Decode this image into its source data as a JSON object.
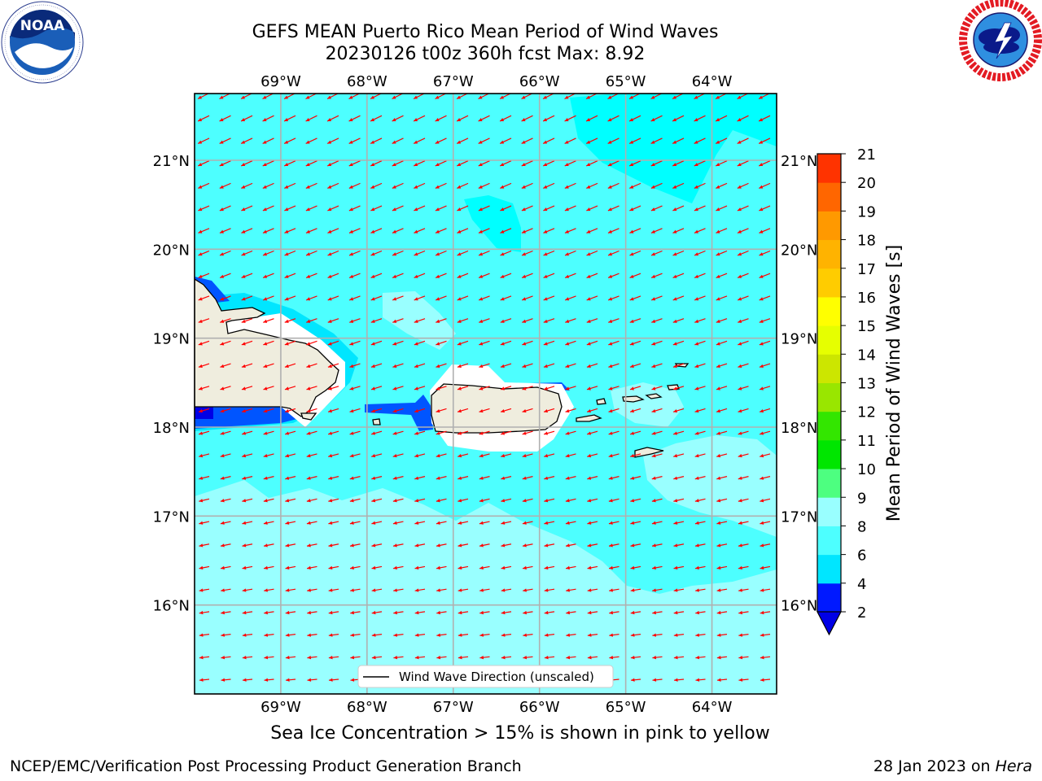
{
  "title": {
    "line1": "GEFS MEAN Puerto Rico Mean Period of Wind Waves",
    "line2": "20230126 t00z 360h fcst   Max: 8.92"
  },
  "logos": {
    "left": {
      "icon": "noaa-logo-icon",
      "text": "NOAA"
    },
    "right": {
      "icon": "national-weather-service-logo-icon"
    }
  },
  "map": {
    "lon_range": [
      -70.0,
      -63.25
    ],
    "lat_range": [
      15.0,
      21.75
    ],
    "lon_ticks": [
      {
        "value": -69,
        "label": "69°W"
      },
      {
        "value": -68,
        "label": "68°W"
      },
      {
        "value": -67,
        "label": "67°W"
      },
      {
        "value": -66,
        "label": "66°W"
      },
      {
        "value": -65,
        "label": "65°W"
      },
      {
        "value": -64,
        "label": "64°W"
      }
    ],
    "lat_ticks": [
      {
        "value": 21,
        "label": "21°N"
      },
      {
        "value": 20,
        "label": "20°N"
      },
      {
        "value": 19,
        "label": "19°N"
      },
      {
        "value": 18,
        "label": "18°N"
      },
      {
        "value": 17,
        "label": "17°N"
      },
      {
        "value": 16,
        "label": "16°N"
      }
    ],
    "grid": true,
    "background_color": "#4dffff",
    "land_color": "#efedde",
    "arrow_color": "#ff0000",
    "legend_label": "Wind Wave Direction (unscaled)",
    "legend_position": "bottom-center"
  },
  "colorbar": {
    "label": "Mean Period of Wind Waves [s]",
    "ticks": [
      "2",
      "4",
      "6",
      "8",
      "9",
      "10",
      "11",
      "12",
      "13",
      "14",
      "15",
      "16",
      "17",
      "18",
      "19",
      "20",
      "21"
    ],
    "colors": [
      "#0019ff",
      "#00e6ff",
      "#4dffff",
      "#99ffff",
      "#4dff80",
      "#00e600",
      "#33e600",
      "#99e600",
      "#cce600",
      "#e6ff00",
      "#ffff00",
      "#ffcc00",
      "#ffb300",
      "#ff9900",
      "#ff6600",
      "#ff3300"
    ],
    "under_color": "#0000e6",
    "extend": "min"
  },
  "note": "Sea Ice Concentration > 15% is shown in pink to yellow",
  "footer": {
    "left": "NCEP/EMC/Verification Post Processing Product Generation Branch",
    "date": "28 Jan 2023 on ",
    "machine": "Hera"
  }
}
